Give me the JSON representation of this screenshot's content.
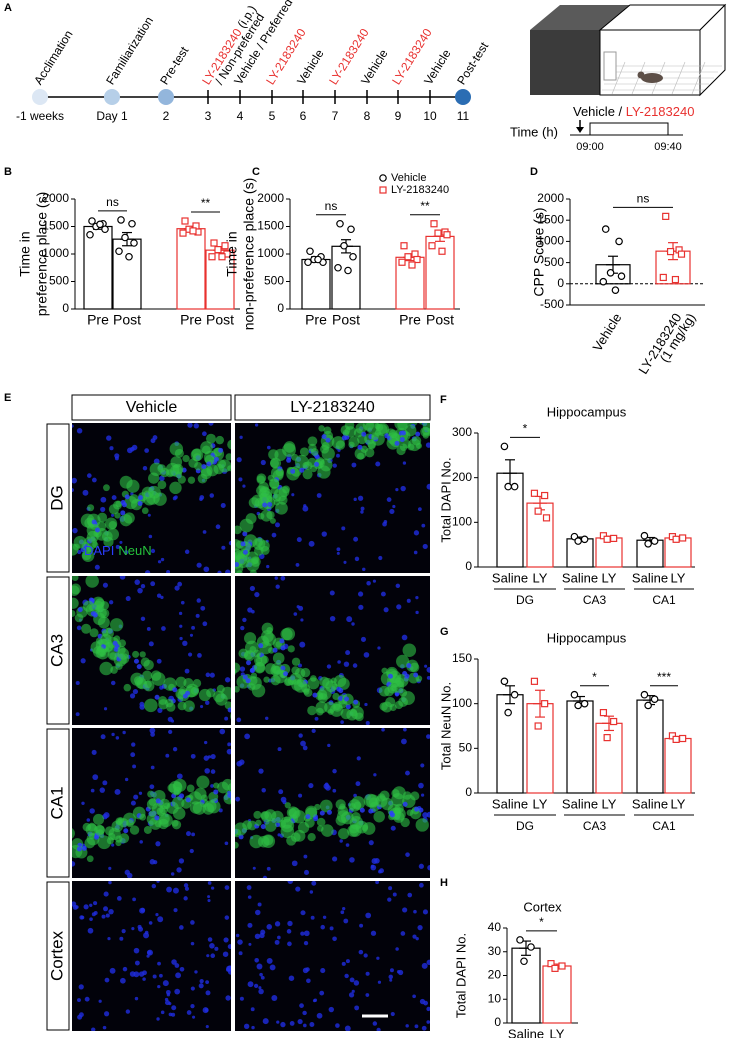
{
  "timeline": {
    "panel": "A",
    "days": [
      "-1 weeks",
      "Day 1",
      "2",
      "3",
      "4",
      "5",
      "6",
      "7",
      "8",
      "9",
      "10",
      "11"
    ],
    "events": [
      {
        "label": [
          [
            {
              "text": "Acclimation"
            }
          ]
        ],
        "dot": "#dce7f4"
      },
      {
        "label": [
          [
            {
              "text": "Familiarization"
            }
          ]
        ],
        "dot": "#b6cfe8"
      },
      {
        "label": [
          [
            {
              "text": "Pre-test"
            }
          ]
        ],
        "dot": "#93b6dc"
      },
      {
        "label": [
          [
            {
              "text": "LY-2183240",
              "color": "#e8312f"
            },
            {
              "text": " (i.p.)"
            }
          ],
          [
            {
              "text": "/ Non-preferred"
            }
          ]
        ]
      },
      {
        "label": [
          [
            {
              "text": "Vehicle / Preferred"
            }
          ]
        ]
      },
      {
        "label": [
          [
            {
              "text": "LY-2183240",
              "color": "#e8312f"
            }
          ]
        ]
      },
      {
        "label": [
          [
            {
              "text": "Vehicle"
            }
          ]
        ]
      },
      {
        "label": [
          [
            {
              "text": "LY-2183240",
              "color": "#e8312f"
            }
          ]
        ]
      },
      {
        "label": [
          [
            {
              "text": "Vehicle"
            }
          ]
        ]
      },
      {
        "label": [
          [
            {
              "text": "LY-2183240",
              "color": "#e8312f"
            }
          ]
        ]
      },
      {
        "label": [
          [
            {
              "text": "Vehicle"
            }
          ]
        ]
      },
      {
        "label": [
          [
            {
              "text": "Post-test"
            }
          ]
        ],
        "dot": "#2b6db3"
      }
    ],
    "schedule": {
      "label": [
        {
          "text": "Vehicle / "
        },
        {
          "text": "LY-2183240",
          "color": "#e8312f"
        }
      ],
      "axis_label": "Time (h)",
      "ticks": [
        "09:00",
        "09:40"
      ]
    }
  },
  "images": {
    "panel": "E",
    "columns": [
      "Vehicle",
      "LY-2183240"
    ],
    "rows": [
      "DG",
      "CA3",
      "CA1",
      "Cortex"
    ],
    "stain_labels": [
      {
        "text": "DAPI",
        "color": "#2b3dff"
      },
      {
        "text": "NeuN",
        "color": "#25c23c"
      }
    ]
  },
  "chart_data": [
    {
      "type": "bar",
      "panel": "B",
      "ylabel": [
        "Time in",
        "preference place (s)"
      ],
      "ylim": [
        0,
        2000
      ],
      "yticks": [
        0,
        500,
        1000,
        1500,
        2000
      ],
      "bars": [
        {
          "category": "Pre",
          "color": "#000000",
          "marker": "circle",
          "value": 1500,
          "error": 50,
          "points": [
            1600,
            1550,
            1500,
            1450,
            1350,
            1540
          ]
        },
        {
          "category": "Post",
          "color": "#000000",
          "marker": "circle",
          "value": 1270,
          "error": 120,
          "points": [
            1620,
            1550,
            1300,
            1200,
            1050,
            950
          ]
        },
        {
          "category": "Pre",
          "color": "#e8312f",
          "marker": "square",
          "value": 1460,
          "error": 40,
          "points": [
            1600,
            1510,
            1450,
            1400,
            1380,
            1420
          ]
        },
        {
          "category": "Post",
          "color": "#e8312f",
          "marker": "square",
          "value": 1070,
          "error": 50,
          "points": [
            1200,
            1150,
            1080,
            1000,
            950,
            950
          ]
        }
      ],
      "significance": [
        "ns",
        "**"
      ]
    },
    {
      "type": "bar",
      "panel": "C",
      "ylabel": [
        "Time in",
        "non-preference place (s)"
      ],
      "ylim": [
        0,
        2000
      ],
      "yticks": [
        0,
        500,
        1000,
        1500,
        2000
      ],
      "legend": [
        {
          "name": "Vehicle",
          "color": "#000000",
          "marker": "circle"
        },
        {
          "name": "LY-2183240",
          "color": "#e8312f",
          "marker": "square"
        }
      ],
      "bars": [
        {
          "category": "Pre",
          "color": "#000000",
          "marker": "circle",
          "value": 900,
          "error": 50,
          "points": [
            1050,
            950,
            900,
            850,
            850,
            900
          ]
        },
        {
          "category": "Post",
          "color": "#000000",
          "marker": "circle",
          "value": 1140,
          "error": 120,
          "points": [
            1550,
            1450,
            1150,
            950,
            750,
            700
          ]
        },
        {
          "category": "Pre",
          "color": "#e8312f",
          "marker": "square",
          "value": 940,
          "error": 60,
          "points": [
            1150,
            1000,
            950,
            900,
            850,
            800
          ]
        },
        {
          "category": "Post",
          "color": "#e8312f",
          "marker": "square",
          "value": 1320,
          "error": 90,
          "points": [
            1550,
            1400,
            1380,
            1350,
            1150,
            1050
          ]
        }
      ],
      "significance": [
        "ns",
        "**"
      ]
    },
    {
      "type": "bar",
      "panel": "D",
      "ylabel": [
        "CPP Score (s)"
      ],
      "ylim": [
        -500,
        2000
      ],
      "yticks": [
        -500,
        0,
        500,
        1000,
        1500,
        2000
      ],
      "hline": {
        "value": 0,
        "style": "dashed"
      },
      "bars": [
        {
          "category": "Vehicle",
          "color": "#000000",
          "marker": "circle",
          "value": 450,
          "error": 200,
          "points": [
            1290,
            1000,
            260,
            180,
            50,
            -150
          ]
        },
        {
          "category": "LY-2183240",
          "sublabel": "(1 mg/kg)",
          "color": "#e8312f",
          "marker": "square",
          "value": 770,
          "error": 200,
          "points": [
            1590,
            800,
            760,
            700,
            150,
            100
          ]
        }
      ],
      "significance": [
        "ns"
      ]
    },
    {
      "type": "bar",
      "panel": "F",
      "title": "Hippocampus",
      "ylabel": [
        "Total DAPI No."
      ],
      "ylim": [
        0,
        300
      ],
      "yticks": [
        0,
        100,
        200,
        300
      ],
      "groups": [
        "DG",
        "CA3",
        "CA1"
      ],
      "bars": [
        {
          "category": "Saline",
          "color": "#000000",
          "marker": "circle",
          "value": 210,
          "error": 30,
          "points": [
            270,
            180,
            180
          ]
        },
        {
          "category": "LY",
          "color": "#e8312f",
          "marker": "square",
          "value": 143,
          "error": 15,
          "points": [
            165,
            160,
            125,
            110
          ]
        },
        {
          "category": "Saline",
          "color": "#000000",
          "marker": "circle",
          "value": 63,
          "error": 4,
          "points": [
            68,
            62,
            58
          ]
        },
        {
          "category": "LY",
          "color": "#e8312f",
          "marker": "square",
          "value": 65,
          "error": 4,
          "points": [
            70,
            64,
            62
          ]
        },
        {
          "category": "Saline",
          "color": "#000000",
          "marker": "circle",
          "value": 60,
          "error": 6,
          "points": [
            70,
            58,
            52
          ]
        },
        {
          "category": "LY",
          "color": "#e8312f",
          "marker": "square",
          "value": 65,
          "error": 3,
          "points": [
            68,
            65,
            62
          ]
        }
      ],
      "significance": [
        "*",
        null,
        null
      ]
    },
    {
      "type": "bar",
      "panel": "G",
      "title": "Hippocampus",
      "ylabel": [
        "Total NeuN No."
      ],
      "ylim": [
        0,
        150
      ],
      "yticks": [
        0,
        50,
        100,
        150
      ],
      "groups": [
        "DG",
        "CA3",
        "CA1"
      ],
      "bars": [
        {
          "category": "Saline",
          "color": "#000000",
          "marker": "circle",
          "value": 110,
          "error": 10,
          "points": [
            125,
            110,
            90
          ]
        },
        {
          "category": "LY",
          "color": "#e8312f",
          "marker": "square",
          "value": 100,
          "error": 15,
          "points": [
            125,
            100,
            75
          ]
        },
        {
          "category": "Saline",
          "color": "#000000",
          "marker": "circle",
          "value": 103,
          "error": 5,
          "points": [
            110,
            100,
            98
          ]
        },
        {
          "category": "LY",
          "color": "#e8312f",
          "marker": "square",
          "value": 78,
          "error": 8,
          "points": [
            90,
            80,
            62
          ]
        },
        {
          "category": "Saline",
          "color": "#000000",
          "marker": "circle",
          "value": 104,
          "error": 5,
          "points": [
            110,
            105,
            98
          ]
        },
        {
          "category": "LY",
          "color": "#e8312f",
          "marker": "square",
          "value": 61,
          "error": 2,
          "points": [
            64,
            61,
            60
          ]
        }
      ],
      "significance": [
        null,
        "*",
        "***"
      ]
    },
    {
      "type": "bar",
      "panel": "H",
      "title": "Cortex",
      "ylabel": [
        "Total DAPI No."
      ],
      "ylim": [
        0,
        40
      ],
      "yticks": [
        0,
        10,
        20,
        30,
        40
      ],
      "bars": [
        {
          "category": "Saline",
          "color": "#000000",
          "marker": "circle",
          "value": 31.5,
          "error": 3,
          "points": [
            35,
            32,
            26
          ]
        },
        {
          "category": "LY",
          "color": "#e8312f",
          "marker": "square",
          "value": 24,
          "error": 0.8,
          "points": [
            25,
            24,
            23
          ]
        }
      ],
      "significance": [
        "*"
      ]
    }
  ]
}
